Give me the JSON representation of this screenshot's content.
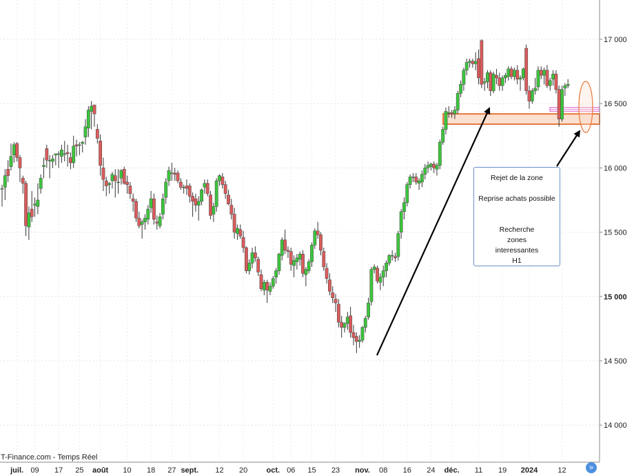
{
  "source_label": "T-Finance.com - Temps Réel",
  "annotation": {
    "lines": [
      "Rejet de la zone",
      "",
      "Reprise achats possible",
      "",
      "",
      "Recherche",
      "zones",
      "interessantes",
      "H1"
    ]
  },
  "scroll_icon": "double-chevron-right-icon",
  "colors": {
    "up": "#3cc43c",
    "down": "#d95c5c",
    "zone_fill": "#fbe0d0",
    "zone_stroke": "#e8763a",
    "pink_zone": "#e48ad8",
    "arrow": "#000000"
  },
  "chart_data": {
    "type": "candlestick",
    "y_axis": {
      "min": 13700,
      "max": 17250,
      "position": "right",
      "ticks": [
        {
          "value": 14000,
          "label": "14 000",
          "bold": false
        },
        {
          "value": 14500,
          "label": "14 500",
          "bold": false
        },
        {
          "value": 15000,
          "label": "15 000",
          "bold": true
        },
        {
          "value": 15500,
          "label": "15 500",
          "bold": false
        },
        {
          "value": 16000,
          "label": "16 000",
          "bold": false
        },
        {
          "value": 16500,
          "label": "16 500",
          "bold": false
        },
        {
          "value": 17000,
          "label": "17 000",
          "bold": false
        }
      ]
    },
    "x_axis": {
      "ticks": [
        {
          "index": 5,
          "label": "juil.",
          "bold": true
        },
        {
          "index": 11,
          "label": "09",
          "bold": false
        },
        {
          "index": 19,
          "label": "17",
          "bold": false
        },
        {
          "index": 26,
          "label": "25",
          "bold": false
        },
        {
          "index": 33,
          "label": "août",
          "bold": true
        },
        {
          "index": 42,
          "label": "10",
          "bold": false
        },
        {
          "index": 50,
          "label": "18",
          "bold": false
        },
        {
          "index": 57,
          "label": "27",
          "bold": false
        },
        {
          "index": 63,
          "label": "sept.",
          "bold": true
        },
        {
          "index": 73,
          "label": "12",
          "bold": false
        },
        {
          "index": 81,
          "label": "20",
          "bold": false
        },
        {
          "index": 91,
          "label": "oct.",
          "bold": true
        },
        {
          "index": 97,
          "label": "06",
          "bold": false
        },
        {
          "index": 104,
          "label": "15",
          "bold": false
        },
        {
          "index": 112,
          "label": "23",
          "bold": false
        },
        {
          "index": 121,
          "label": "nov.",
          "bold": true
        },
        {
          "index": 128,
          "label": "08",
          "bold": false
        },
        {
          "index": 136,
          "label": "16",
          "bold": false
        },
        {
          "index": 144,
          "label": "24",
          "bold": false
        },
        {
          "index": 151,
          "label": "déc.",
          "bold": true
        },
        {
          "index": 160,
          "label": "11",
          "bold": false
        },
        {
          "index": 168,
          "label": "19",
          "bold": false
        },
        {
          "index": 177,
          "label": "2024",
          "bold": true
        },
        {
          "index": 188,
          "label": "12",
          "bold": false
        }
      ]
    },
    "candles": [
      [
        15840,
        15870,
        15700,
        15840
      ],
      [
        15850,
        15990,
        15750,
        15940
      ],
      [
        15990,
        16060,
        15890,
        15940
      ],
      [
        16010,
        16190,
        15980,
        16090
      ],
      [
        16100,
        16200,
        16040,
        16180
      ],
      [
        16190,
        16200,
        16050,
        16080
      ],
      [
        16080,
        16100,
        15890,
        16000
      ],
      [
        15920,
        15940,
        15800,
        15880
      ],
      [
        15880,
        15900,
        15470,
        15550
      ],
      [
        15540,
        15700,
        15440,
        15650
      ],
      [
        15680,
        15820,
        15580,
        15620
      ],
      [
        15710,
        15770,
        15620,
        15720
      ],
      [
        15700,
        15880,
        15640,
        15750
      ],
      [
        15840,
        15950,
        15800,
        15920
      ],
      [
        16010,
        16080,
        15920,
        16020
      ],
      [
        16150,
        16180,
        16000,
        16060
      ],
      [
        16060,
        16100,
        15920,
        16060
      ],
      [
        16050,
        16100,
        16000,
        16070
      ],
      [
        16100,
        16110,
        16020,
        16110
      ],
      [
        16110,
        16130,
        16000,
        16110
      ],
      [
        16090,
        16180,
        16040,
        16140
      ],
      [
        16110,
        16210,
        16050,
        16110
      ],
      [
        16120,
        16180,
        16010,
        16110
      ],
      [
        16080,
        16120,
        15990,
        16040
      ],
      [
        16040,
        16250,
        16000,
        16170
      ],
      [
        16180,
        16220,
        16090,
        16170
      ],
      [
        16180,
        16200,
        16100,
        16180
      ],
      [
        16190,
        16210,
        16120,
        16200
      ],
      [
        16240,
        16380,
        16180,
        16320
      ],
      [
        16310,
        16480,
        16240,
        16450
      ],
      [
        16440,
        16520,
        16300,
        16480
      ],
      [
        16490,
        16490,
        16320,
        16420
      ],
      [
        16300,
        16340,
        16190,
        16230
      ],
      [
        16210,
        16260,
        15940,
        16020
      ],
      [
        16000,
        16080,
        15820,
        15910
      ],
      [
        15900,
        15930,
        15780,
        15860
      ],
      [
        15870,
        15890,
        15800,
        15880
      ],
      [
        15900,
        15970,
        15840,
        15950
      ],
      [
        15940,
        15990,
        15770,
        15900
      ],
      [
        15890,
        15990,
        15800,
        15890
      ],
      [
        15920,
        15990,
        15870,
        15980
      ],
      [
        15990,
        16010,
        15870,
        15880
      ],
      [
        15890,
        15940,
        15800,
        15870
      ],
      [
        15860,
        15890,
        15760,
        15800
      ],
      [
        15760,
        15800,
        15660,
        15740
      ],
      [
        15740,
        15760,
        15580,
        15610
      ],
      [
        15610,
        15660,
        15530,
        15550
      ],
      [
        15560,
        15600,
        15450,
        15580
      ],
      [
        15580,
        15640,
        15520,
        15610
      ],
      [
        15600,
        15710,
        15560,
        15680
      ],
      [
        15690,
        15820,
        15650,
        15760
      ],
      [
        15760,
        15800,
        15560,
        15600
      ],
      [
        15580,
        15630,
        15520,
        15570
      ],
      [
        15550,
        15650,
        15530,
        15620
      ],
      [
        15640,
        15800,
        15600,
        15760
      ],
      [
        15770,
        15920,
        15720,
        15890
      ],
      [
        15900,
        16010,
        15860,
        15980
      ],
      [
        15960,
        16040,
        15900,
        15960
      ],
      [
        15960,
        16000,
        15900,
        15950
      ],
      [
        15960,
        15980,
        15880,
        15900
      ],
      [
        15890,
        15920,
        15830,
        15850
      ],
      [
        15850,
        15870,
        15800,
        15850
      ],
      [
        15860,
        15910,
        15790,
        15840
      ],
      [
        15860,
        15880,
        15730,
        15780
      ],
      [
        15780,
        15810,
        15620,
        15740
      ],
      [
        15760,
        15800,
        15660,
        15710
      ],
      [
        15710,
        15780,
        15590,
        15740
      ],
      [
        15740,
        15840,
        15710,
        15830
      ],
      [
        15850,
        15910,
        15800,
        15880
      ],
      [
        15880,
        15910,
        15780,
        15800
      ],
      [
        15790,
        15820,
        15600,
        15630
      ],
      [
        15640,
        15730,
        15580,
        15700
      ],
      [
        15700,
        15920,
        15660,
        15900
      ],
      [
        15900,
        15950,
        15860,
        15940
      ],
      [
        15930,
        15960,
        15840,
        15870
      ],
      [
        15870,
        15900,
        15760,
        15800
      ],
      [
        15790,
        15830,
        15710,
        15720
      ],
      [
        15710,
        15760,
        15600,
        15640
      ],
      [
        15640,
        15690,
        15450,
        15500
      ],
      [
        15490,
        15560,
        15440,
        15530
      ],
      [
        15520,
        15560,
        15450,
        15470
      ],
      [
        15460,
        15510,
        15340,
        15380
      ],
      [
        15380,
        15390,
        15180,
        15200
      ],
      [
        15200,
        15290,
        15170,
        15260
      ],
      [
        15260,
        15380,
        15220,
        15340
      ],
      [
        15340,
        15390,
        15270,
        15300
      ],
      [
        15290,
        15310,
        15160,
        15190
      ],
      [
        15170,
        15210,
        15040,
        15060
      ],
      [
        15050,
        15130,
        15010,
        15110
      ],
      [
        15110,
        15130,
        14950,
        15050
      ],
      [
        15040,
        15110,
        15010,
        15080
      ],
      [
        15080,
        15160,
        15060,
        15140
      ],
      [
        15150,
        15220,
        15100,
        15200
      ],
      [
        15200,
        15340,
        15170,
        15330
      ],
      [
        15320,
        15460,
        15280,
        15440
      ],
      [
        15440,
        15520,
        15330,
        15360
      ],
      [
        15360,
        15390,
        15300,
        15350
      ],
      [
        15350,
        15380,
        15200,
        15250
      ],
      [
        15240,
        15320,
        15150,
        15280
      ],
      [
        15270,
        15330,
        15210,
        15300
      ],
      [
        15290,
        15350,
        15240,
        15330
      ],
      [
        15330,
        15360,
        15150,
        15180
      ],
      [
        15170,
        15230,
        15080,
        15210
      ],
      [
        15200,
        15290,
        15180,
        15270
      ],
      [
        15270,
        15420,
        15230,
        15400
      ],
      [
        15400,
        15530,
        15370,
        15510
      ],
      [
        15510,
        15580,
        15450,
        15480
      ],
      [
        15480,
        15500,
        15320,
        15360
      ],
      [
        15350,
        15380,
        15200,
        15230
      ],
      [
        15220,
        15260,
        15100,
        15140
      ],
      [
        15130,
        15180,
        15010,
        15040
      ],
      [
        15030,
        15080,
        14950,
        14990
      ],
      [
        14980,
        15020,
        14880,
        14950
      ],
      [
        14940,
        14980,
        14760,
        14800
      ],
      [
        14800,
        14850,
        14680,
        14760
      ],
      [
        14760,
        14800,
        14720,
        14790
      ],
      [
        14790,
        14880,
        14740,
        14840
      ],
      [
        14850,
        14920,
        14680,
        14720
      ],
      [
        14720,
        14780,
        14620,
        14680
      ],
      [
        14690,
        14720,
        14560,
        14650
      ],
      [
        14650,
        14700,
        14600,
        14660
      ],
      [
        14660,
        14770,
        14640,
        14760
      ],
      [
        14760,
        14850,
        14720,
        14830
      ],
      [
        14840,
        14990,
        14820,
        14950
      ],
      [
        14960,
        15230,
        14930,
        15210
      ],
      [
        15210,
        15250,
        15180,
        15230
      ],
      [
        15220,
        15240,
        15100,
        15120
      ],
      [
        15110,
        15180,
        15050,
        15150
      ],
      [
        15150,
        15240,
        15080,
        15200
      ],
      [
        15200,
        15280,
        15150,
        15260
      ],
      [
        15260,
        15330,
        15240,
        15320
      ],
      [
        15320,
        15360,
        15280,
        15320
      ],
      [
        15310,
        15340,
        15270,
        15300
      ],
      [
        15310,
        15510,
        15280,
        15490
      ],
      [
        15500,
        15680,
        15450,
        15660
      ],
      [
        15660,
        15770,
        15600,
        15730
      ],
      [
        15730,
        15890,
        15700,
        15870
      ],
      [
        15870,
        15950,
        15840,
        15930
      ],
      [
        15930,
        15960,
        15890,
        15930
      ],
      [
        15930,
        15960,
        15870,
        15890
      ],
      [
        15880,
        15920,
        15830,
        15900
      ],
      [
        15890,
        15980,
        15850,
        15950
      ],
      [
        15950,
        16030,
        15910,
        16000
      ],
      [
        16000,
        16050,
        15960,
        16020
      ],
      [
        16010,
        16040,
        15980,
        16030
      ],
      [
        16030,
        16050,
        15960,
        16000
      ],
      [
        15990,
        16040,
        15940,
        16020
      ],
      [
        16020,
        16220,
        15990,
        16200
      ],
      [
        16200,
        16320,
        16180,
        16300
      ],
      [
        16300,
        16470,
        16260,
        16440
      ],
      [
        16430,
        16480,
        16390,
        16430
      ],
      [
        16430,
        16450,
        16390,
        16420
      ],
      [
        16420,
        16480,
        16380,
        16450
      ],
      [
        16450,
        16600,
        16420,
        16580
      ],
      [
        16580,
        16680,
        16550,
        16650
      ],
      [
        16650,
        16780,
        16600,
        16760
      ],
      [
        16760,
        16850,
        16720,
        16820
      ],
      [
        16820,
        16850,
        16780,
        16830
      ],
      [
        16830,
        16850,
        16780,
        16810
      ],
      [
        16810,
        16900,
        16760,
        16830
      ],
      [
        16850,
        16920,
        16650,
        16700
      ],
      [
        16990,
        17000,
        16620,
        16650
      ],
      [
        16660,
        16700,
        16600,
        16670
      ],
      [
        16670,
        16760,
        16620,
        16740
      ],
      [
        16740,
        16760,
        16560,
        16600
      ],
      [
        16600,
        16750,
        16580,
        16730
      ],
      [
        16720,
        16770,
        16650,
        16700
      ],
      [
        16700,
        16740,
        16600,
        16640
      ],
      [
        16640,
        16720,
        16600,
        16700
      ],
      [
        16700,
        16740,
        16660,
        16720
      ],
      [
        16710,
        16790,
        16680,
        16770
      ],
      [
        16770,
        16790,
        16690,
        16710
      ],
      [
        16710,
        16780,
        16680,
        16760
      ],
      [
        16760,
        16800,
        16650,
        16690
      ],
      [
        16690,
        16720,
        16600,
        16700
      ],
      [
        16700,
        16780,
        16680,
        16770
      ],
      [
        16930,
        16960,
        16570,
        16600
      ],
      [
        16600,
        16640,
        16460,
        16520
      ],
      [
        16520,
        16620,
        16500,
        16600
      ],
      [
        16600,
        16700,
        16570,
        16620
      ],
      [
        16630,
        16790,
        16600,
        16760
      ],
      [
        16760,
        16790,
        16690,
        16720
      ],
      [
        16720,
        16780,
        16650,
        16760
      ],
      [
        16760,
        16800,
        16620,
        16640
      ],
      [
        16640,
        16700,
        16600,
        16680
      ],
      [
        16690,
        16760,
        16640,
        16730
      ],
      [
        16730,
        16760,
        16580,
        16610
      ],
      [
        16610,
        16640,
        16320,
        16380
      ],
      [
        16380,
        16640,
        16360,
        16610
      ],
      [
        16620,
        16660,
        16560,
        16640
      ],
      [
        16640,
        16690,
        16620,
        16650
      ]
    ],
    "zones": [
      {
        "name": "support-zone",
        "from": 16340,
        "to": 16420,
        "start_index": 155,
        "end_index": 200
      },
      {
        "name": "resistance-band-pink",
        "from": 16440,
        "to": 16470,
        "start_index": 188,
        "end_index": 200
      }
    ]
  }
}
